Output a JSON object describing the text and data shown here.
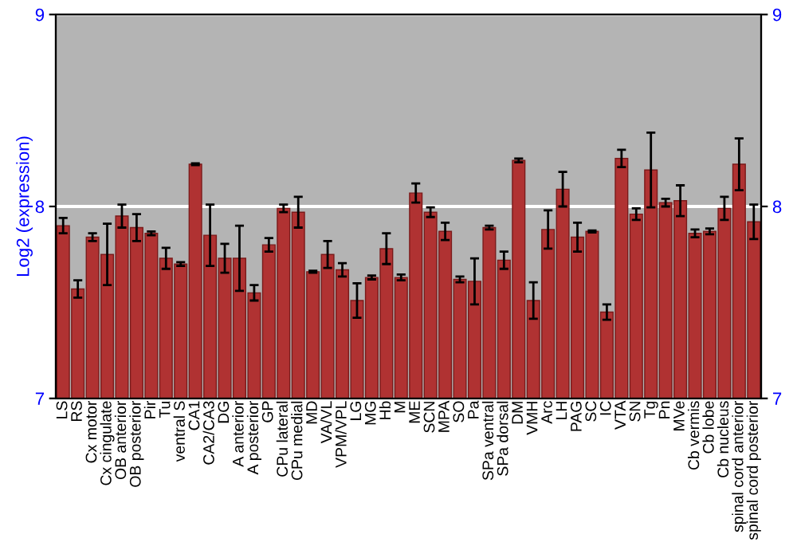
{
  "chart_data": {
    "type": "bar",
    "ylabel": "Log2 (expression)",
    "categories": [
      "LS",
      "RS",
      "Cx motor",
      "Cx cingulate",
      "OB anterior",
      "OB posterior",
      "Pir",
      "Tu",
      "ventral S",
      "CA1",
      "CA2/CA3",
      "DG",
      "A anterior",
      "A posterior",
      "GP",
      "CPu lateral",
      "CPu medial",
      "MD",
      "VA/VL",
      "VPM/VPL",
      "LG",
      "MG",
      "Hb",
      "M",
      "ME",
      "SCN",
      "MPA",
      "SO",
      "Pa",
      "SPa ventral",
      "SPa dorsal",
      "DM",
      "VMH",
      "Arc",
      "LH",
      "PAG",
      "SC",
      "IC",
      "VTA",
      "SN",
      "Tg",
      "Pn",
      "MVe",
      "Cb vermis",
      "Cb lobe",
      "Cb nucleus",
      "spinal cord anterior",
      "spinal cord posterior"
    ],
    "series": [
      {
        "color": "#b03232",
        "values": [
          7.9,
          7.57,
          7.84,
          7.75,
          7.95,
          7.89,
          7.86,
          7.73,
          7.7,
          8.22,
          7.85,
          7.73,
          7.73,
          7.55,
          7.8,
          7.99,
          7.97,
          7.66,
          7.75,
          7.67,
          7.51,
          7.63,
          7.78,
          7.63,
          8.07,
          7.97,
          7.87,
          7.62,
          7.61,
          7.89,
          7.72,
          8.24,
          7.51,
          7.88,
          8.09,
          7.84,
          7.87,
          7.45,
          8.25,
          7.96,
          8.19,
          8.02,
          8.03,
          7.86,
          7.87,
          7.99,
          8.22,
          7.92
        ],
        "errors": [
          0.04,
          0.045,
          0.02,
          0.16,
          0.06,
          0.07,
          0.01,
          0.055,
          0.01,
          0.005,
          0.16,
          0.075,
          0.17,
          0.04,
          0.035,
          0.02,
          0.08,
          0.005,
          0.07,
          0.035,
          0.09,
          0.01,
          0.08,
          0.015,
          0.05,
          0.025,
          0.045,
          0.015,
          0.12,
          0.01,
          0.045,
          0.01,
          0.095,
          0.1,
          0.09,
          0.075,
          0.005,
          0.04,
          0.045,
          0.03,
          0.195,
          0.02,
          0.08,
          0.02,
          0.015,
          0.06,
          0.135,
          0.09
        ]
      }
    ],
    "ylim": [
      7,
      9
    ],
    "yticks": [
      7,
      8,
      9
    ],
    "y2lim": [
      7,
      9
    ],
    "y2ticks": [
      7,
      8,
      9
    ],
    "grid": "y",
    "legend": false
  }
}
